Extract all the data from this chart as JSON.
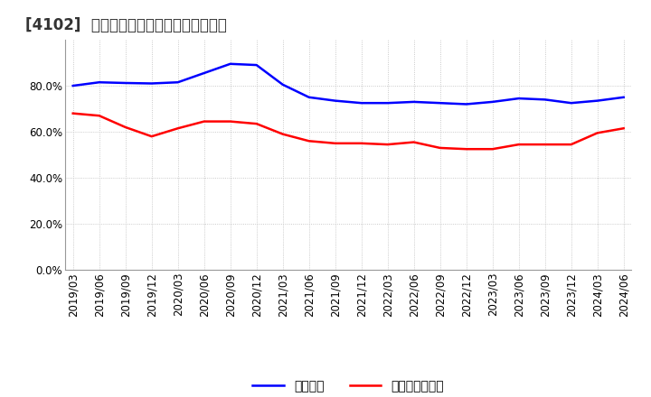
{
  "title": "[4102]  固定比率、固定長期適合率の推移",
  "x_labels": [
    "2019/03",
    "2019/06",
    "2019/09",
    "2019/12",
    "2020/03",
    "2020/06",
    "2020/09",
    "2020/12",
    "2021/03",
    "2021/06",
    "2021/09",
    "2021/12",
    "2022/03",
    "2022/06",
    "2022/09",
    "2022/12",
    "2023/03",
    "2023/06",
    "2023/09",
    "2023/12",
    "2024/03",
    "2024/06"
  ],
  "fixed_ratio": [
    80.0,
    81.5,
    81.2,
    81.0,
    81.5,
    85.5,
    89.5,
    89.0,
    80.5,
    75.0,
    73.5,
    72.5,
    72.5,
    73.0,
    72.5,
    72.0,
    73.0,
    74.5,
    74.0,
    72.5,
    73.5,
    75.0
  ],
  "fixed_long_ratio": [
    68.0,
    67.0,
    62.0,
    58.0,
    61.5,
    64.5,
    64.5,
    63.5,
    59.0,
    56.0,
    55.0,
    55.0,
    54.5,
    55.5,
    53.0,
    52.5,
    52.5,
    54.5,
    54.5,
    54.5,
    59.5,
    61.5
  ],
  "line1_color": "#0000ff",
  "line2_color": "#ff0000",
  "legend1": "固定比率",
  "legend2": "固定長期適合率",
  "ylim": [
    0,
    100
  ],
  "yticks": [
    0,
    20,
    40,
    60,
    80
  ],
  "ytick_labels": [
    "0.0%",
    "20.0%",
    "40.0%",
    "60.0%",
    "80.0%"
  ],
  "background_color": "#ffffff",
  "grid_color": "#bbbbbb",
  "title_fontsize": 12,
  "tick_fontsize": 8.5,
  "legend_fontsize": 10,
  "line_width": 1.8
}
